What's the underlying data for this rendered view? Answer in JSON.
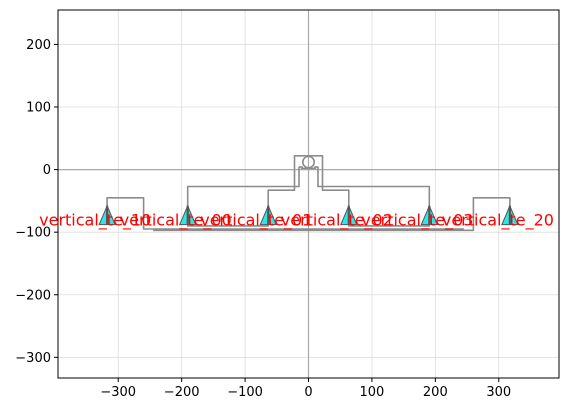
{
  "chart_data": {
    "type": "layout-plot",
    "title": "",
    "xlabel": "",
    "ylabel": "",
    "xlim": [
      -395,
      395
    ],
    "ylim": [
      -333,
      255
    ],
    "grid": true,
    "xticks": [
      -300,
      -200,
      -100,
      0,
      100,
      200,
      300
    ],
    "yticks": [
      200,
      100,
      0,
      -100,
      -200,
      -300
    ],
    "xtick_labels": [
      "−300",
      "−200",
      "−100",
      "0",
      "100",
      "200",
      "300"
    ],
    "ytick_labels": [
      "200",
      "100",
      "0",
      "−100",
      "−200",
      "−300"
    ],
    "origin_axes": {
      "x": 0,
      "y": 0
    },
    "colors": {
      "route": "#8c8c8c",
      "coupler_fill": "#2ee6e6",
      "coupler_edge": "#555555",
      "label": "#ff0000",
      "grid": "#dcdcdc",
      "origin_axes": "#a8a8a8"
    },
    "ring": {
      "x": 0,
      "y": 12,
      "r": 9
    },
    "grating_couplers": [
      {
        "x": -317.5,
        "y": -80,
        "label": "vertical_te_10"
      },
      {
        "x": -190.5,
        "y": -80,
        "label": "vertical_te_00"
      },
      {
        "x": -63.5,
        "y": -80,
        "label": "vertical_te_01"
      },
      {
        "x": 63.5,
        "y": -80,
        "label": "vertical_te_02"
      },
      {
        "x": 190.5,
        "y": -80,
        "label": "vertical_te_03"
      },
      {
        "x": 317.5,
        "y": -80,
        "label": "vertical_te_20"
      }
    ],
    "routes": [
      [
        [
          -317.5,
          -60
        ],
        [
          -317.5,
          -45
        ],
        [
          -260,
          -45
        ],
        [
          -260,
          -95
        ],
        [
          245,
          -95
        ],
        [
          245,
          -95
        ]
      ],
      [
        [
          317.5,
          -60
        ],
        [
          317.5,
          -45
        ],
        [
          260,
          -45
        ],
        [
          260,
          -97
        ],
        [
          -245,
          -97
        ]
      ],
      [
        [
          -190.5,
          -60
        ],
        [
          -190.5,
          -27
        ],
        [
          -15,
          -27
        ],
        [
          -15,
          4
        ],
        [
          -9,
          4
        ]
      ],
      [
        [
          190.5,
          -60
        ],
        [
          190.5,
          -27
        ],
        [
          15,
          -27
        ],
        [
          15,
          4
        ],
        [
          9,
          4
        ]
      ],
      [
        [
          -63.5,
          -60
        ],
        [
          -63.5,
          -33
        ],
        [
          -22,
          -33
        ],
        [
          -22,
          22
        ],
        [
          22,
          22
        ],
        [
          22,
          -33
        ],
        [
          63.5,
          -33
        ],
        [
          63.5,
          -60
        ]
      ],
      [
        [
          -190.5,
          -60
        ],
        [
          -190.5,
          -90
        ],
        [
          -63.5,
          -90
        ],
        [
          -63.5,
          -60
        ]
      ],
      [
        [
          63.5,
          -60
        ],
        [
          63.5,
          -90
        ],
        [
          190.5,
          -90
        ],
        [
          190.5,
          -60
        ]
      ]
    ]
  }
}
